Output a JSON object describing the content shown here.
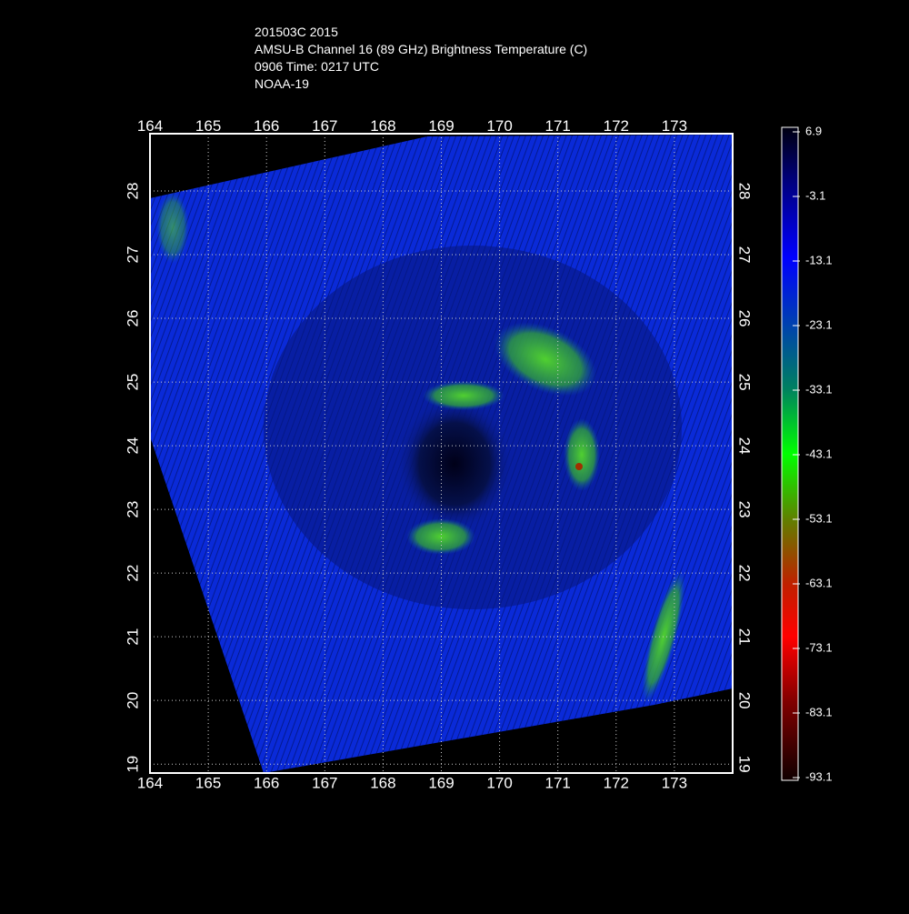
{
  "header": {
    "lines": [
      "201503C 2015",
      "AMSU-B Channel 16 (89 GHz) Brightness Temperature (C)",
      "0906 Time: 0217 UTC",
      "NOAA-19"
    ]
  },
  "map": {
    "xlim": [
      164,
      174
    ],
    "ylim": [
      18.86,
      28.9
    ],
    "xticks": [
      164,
      165,
      166,
      167,
      168,
      169,
      170,
      171,
      172,
      173
    ],
    "yticks": [
      19,
      20,
      21,
      22,
      23,
      24,
      25,
      26,
      27,
      28
    ],
    "grid": true
  },
  "colorbar": {
    "lim": [
      -93.1,
      6.9
    ],
    "ticks": [
      6.9,
      -3.1,
      -13.1,
      -23.1,
      -33.1,
      -43.1,
      -53.1,
      -63.1,
      -73.1,
      -83.1,
      -93.1
    ]
  }
}
